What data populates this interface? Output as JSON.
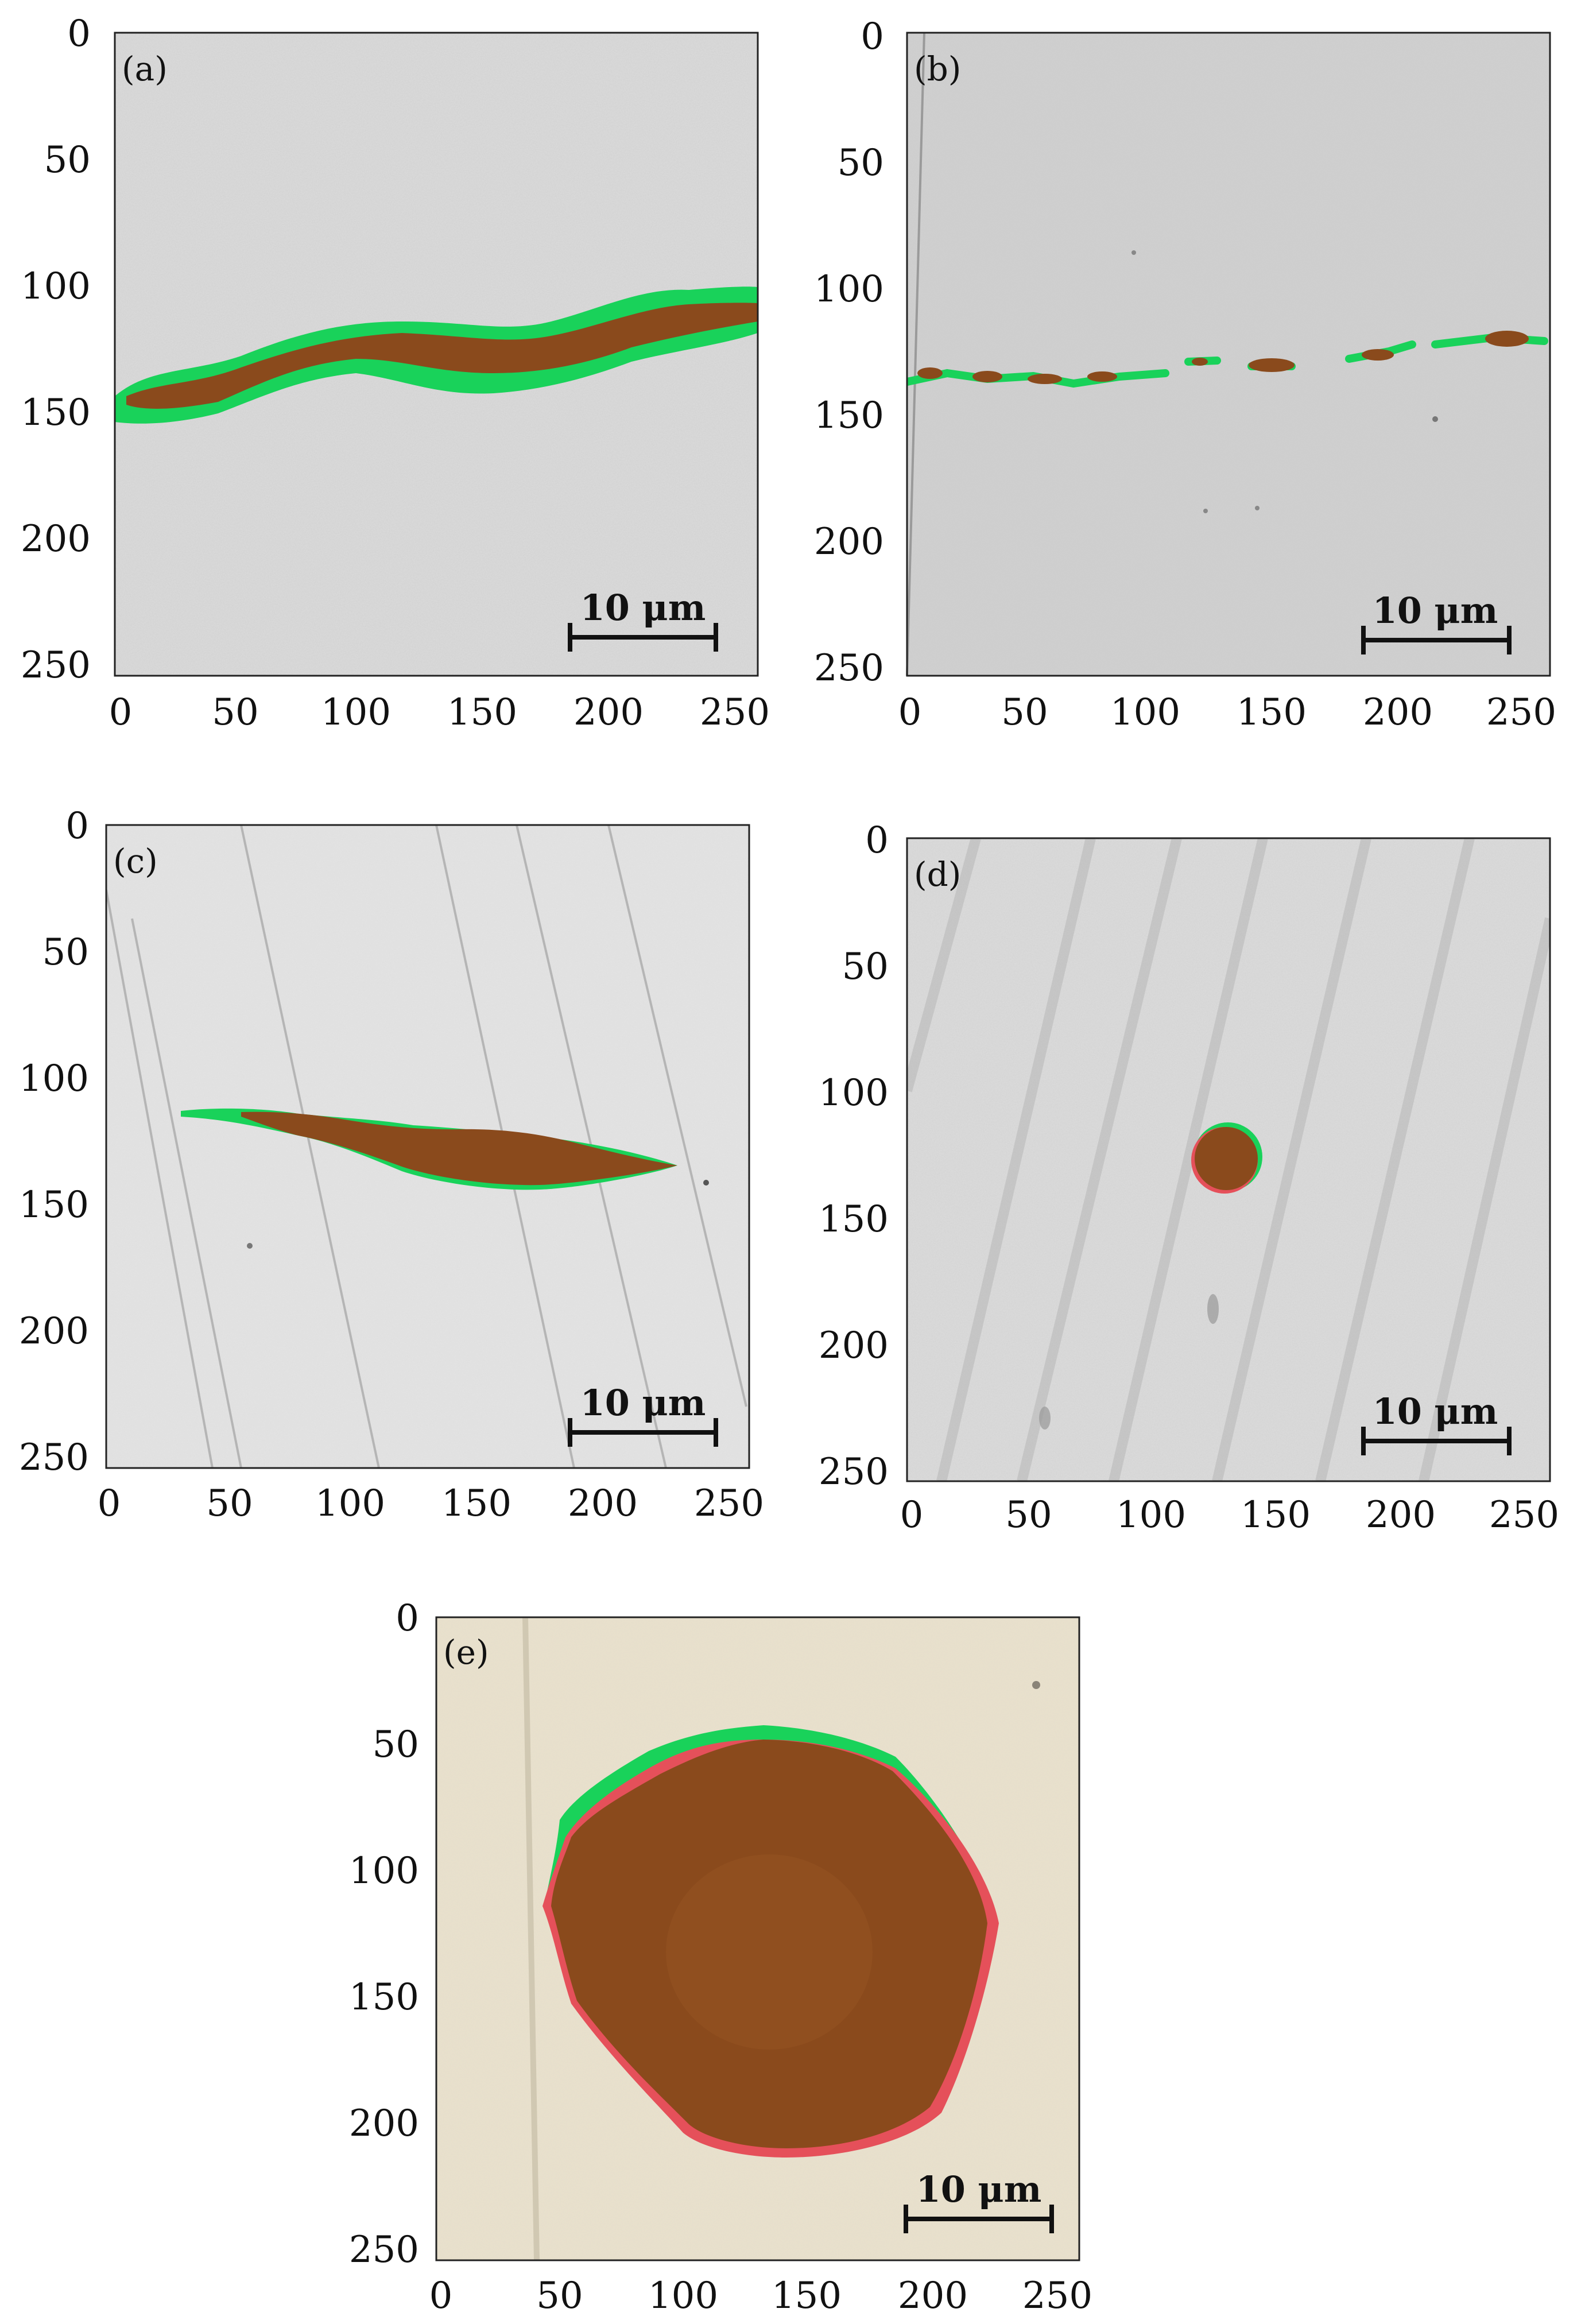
{
  "panels": [
    {
      "label": "(a)",
      "scale_bar": "10 μm",
      "background": "#d9d9d9",
      "grain": "#a8a8a8"
    },
    {
      "label": "(b)",
      "scale_bar": "10 μm",
      "background": "#cfcfcf",
      "grain": "#b8b8b8"
    },
    {
      "label": "(c)",
      "scale_bar": "10 μm",
      "background": "#e2e2e2",
      "grain": "#c4c4c4"
    },
    {
      "label": "(d)",
      "scale_bar": "10 μm",
      "background": "#dadada",
      "grain": "#aaaaaa"
    },
    {
      "label": "(e)",
      "scale_bar": "10 μm",
      "background": "#e8e0cc",
      "grain": "#cfc7b2"
    }
  ],
  "axis_ticks": [
    "0",
    "50",
    "100",
    "150",
    "200",
    "250"
  ],
  "colors": {
    "inclusion": "#8a4a1c",
    "green_edge": "#19d25a",
    "red_edge": "#e5505a"
  }
}
